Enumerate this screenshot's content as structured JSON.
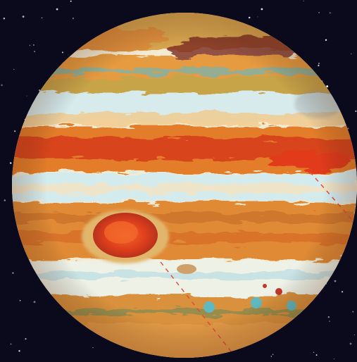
{
  "scene": {
    "subject": "jupiter-planet-illustration",
    "background_color": "#0b0a1c",
    "star_color": "#ffffff",
    "palette": {
      "cream": "#f6efd9",
      "pale_cyan": "#cfe9ee",
      "teal": "#5fb9c0",
      "orange": "#e58a2c",
      "burnt_orange": "#d45f1c",
      "red": "#d8341c",
      "ochre": "#c9a24a",
      "olive": "#7d7a3a",
      "dark_maroon": "#4a1f1f"
    },
    "features": {
      "great_red_spot_color": "#e0401c",
      "small_spot_colors": [
        "#5fb9c0",
        "#5fb9c0",
        "#5fb9c0",
        "#c03828"
      ],
      "dashed_line_color": "#e04a3a"
    }
  }
}
